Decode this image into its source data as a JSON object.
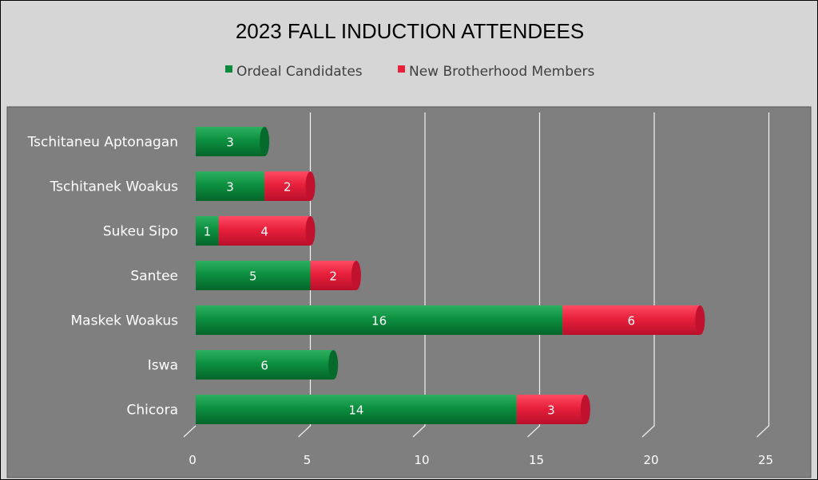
{
  "chart_data": {
    "type": "bar",
    "orientation": "horizontal",
    "stacked": true,
    "title": "2023 FALL INDUCTION ATTENDEES",
    "categories": [
      "Tschitaneu Aptonagan",
      "Tschitanek Woakus",
      "Sukeu Sipo",
      "Santee",
      "Maskek Woakus",
      "Iswa",
      "Chicora"
    ],
    "series": [
      {
        "name": "Ordeal Candidates",
        "color": "#0a8a3a",
        "values": [
          3,
          3,
          1,
          5,
          16,
          6,
          14
        ]
      },
      {
        "name": "New Brotherhood Members",
        "color": "#e8203c",
        "values": [
          null,
          2,
          4,
          2,
          6,
          null,
          3
        ]
      }
    ],
    "xlim": [
      0,
      25
    ],
    "xticks": [
      0,
      5,
      10,
      15,
      20,
      25
    ],
    "grid": true,
    "legend": "top",
    "colors": {
      "outer_background": "#d6d6d6",
      "plot_background": "#7f7f7f",
      "grid": "#f2f2f2",
      "title": "#000000",
      "labels": "#ffffff"
    }
  }
}
